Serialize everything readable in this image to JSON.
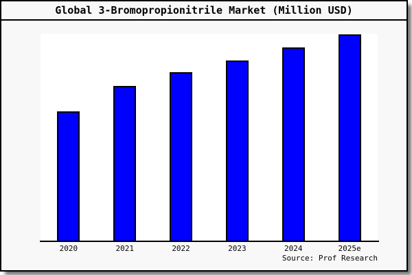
{
  "chart_data": {
    "type": "bar",
    "title": "Global 3-Bromopropionitrile Market (Million USD)",
    "categories": [
      "2020",
      "2021",
      "2022",
      "2023",
      "2024",
      "2025e"
    ],
    "values": [
      62.7,
      75.0,
      81.7,
      87.3,
      93.7,
      100.0
    ],
    "values_note": "no y-axis shown; values estimated as relative index, 2025e = 100",
    "xlabel": "",
    "ylabel": "",
    "ylim": [
      0,
      100.3
    ],
    "grid": false,
    "legend": "none",
    "bar_fill": "#0000ff",
    "bar_border": "#000000"
  },
  "footer": {
    "source_label": "Source: Prof Research"
  },
  "colors": {
    "background": "#f8f8f8",
    "plot_background": "#ffffff",
    "frame_border": "#000000",
    "axis": "#000000",
    "text": "#000000"
  }
}
